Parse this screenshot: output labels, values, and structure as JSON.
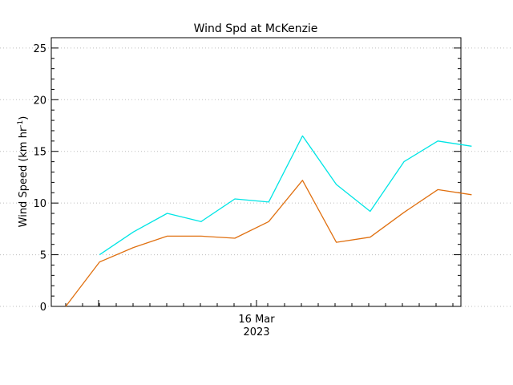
{
  "chart_data": {
    "type": "line",
    "title": "Wind Spd at McKenzie",
    "ylabel": "Wind Speed (km hr",
    "ylabel_sup": "-1",
    "ylabel_close": ")",
    "xlabel": "",
    "x_tick_label": "16 Mar",
    "x_tick_year": "2023",
    "ylim": [
      0,
      26
    ],
    "y_ticks": [
      "0",
      "5",
      "10",
      "15",
      "20",
      "25"
    ],
    "grid": "horizontal-dotted",
    "legend": "none",
    "series": [
      {
        "color": "#00e5e5",
        "x": [
          1,
          2,
          3,
          4,
          5,
          6,
          7,
          8,
          9,
          10,
          11,
          12
        ],
        "y": [
          5.0,
          7.2,
          9.0,
          8.2,
          10.4,
          10.1,
          16.5,
          11.8,
          9.2,
          14.0,
          16.0,
          15.5
        ]
      },
      {
        "color": "#e07010",
        "x": [
          0,
          1,
          2,
          3,
          4,
          5,
          6,
          7,
          8,
          9,
          10,
          11,
          12
        ],
        "y": [
          0.0,
          4.3,
          5.7,
          6.8,
          6.8,
          6.6,
          8.2,
          12.2,
          6.2,
          6.7,
          9.1,
          11.3,
          10.8
        ]
      }
    ]
  }
}
